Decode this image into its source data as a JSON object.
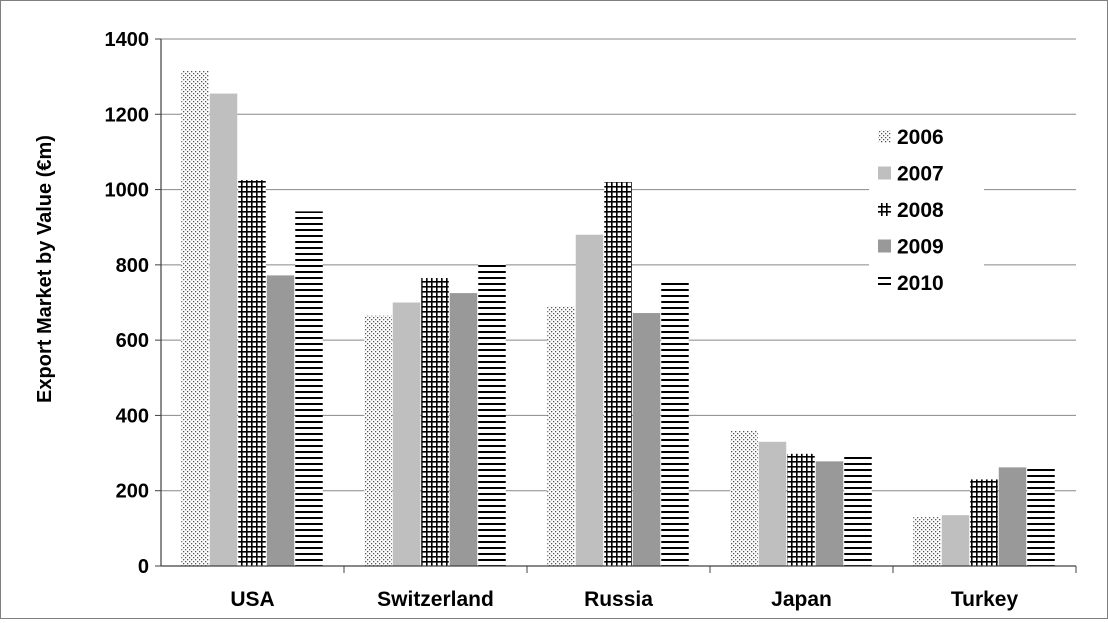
{
  "chart_data": {
    "type": "bar",
    "title": "",
    "xlabel": "",
    "ylabel": "Export Market by Value (€m)",
    "ylim": [
      0,
      1400
    ],
    "yticks": [
      0,
      200,
      400,
      600,
      800,
      1000,
      1200,
      1400
    ],
    "grid": true,
    "legend_position": "top-right",
    "categories": [
      "USA",
      "Switzerland",
      "Russia",
      "Japan",
      "Turkey"
    ],
    "series": [
      {
        "name": "2006",
        "pattern": "dots",
        "values": [
          1315,
          665,
          690,
          360,
          130
        ]
      },
      {
        "name": "2007",
        "pattern": "solid-light",
        "values": [
          1255,
          700,
          880,
          330,
          135
        ]
      },
      {
        "name": "2008",
        "pattern": "grid",
        "values": [
          1025,
          765,
          1020,
          298,
          230
        ]
      },
      {
        "name": "2009",
        "pattern": "solid-dark",
        "values": [
          772,
          725,
          672,
          278,
          262
        ]
      },
      {
        "name": "2010",
        "pattern": "horizontal-lines",
        "values": [
          942,
          805,
          755,
          290,
          262
        ]
      }
    ],
    "colors": {
      "light": "#bfbfbf",
      "dark": "#999999",
      "grid": "#888888",
      "axis": "#404040"
    }
  }
}
